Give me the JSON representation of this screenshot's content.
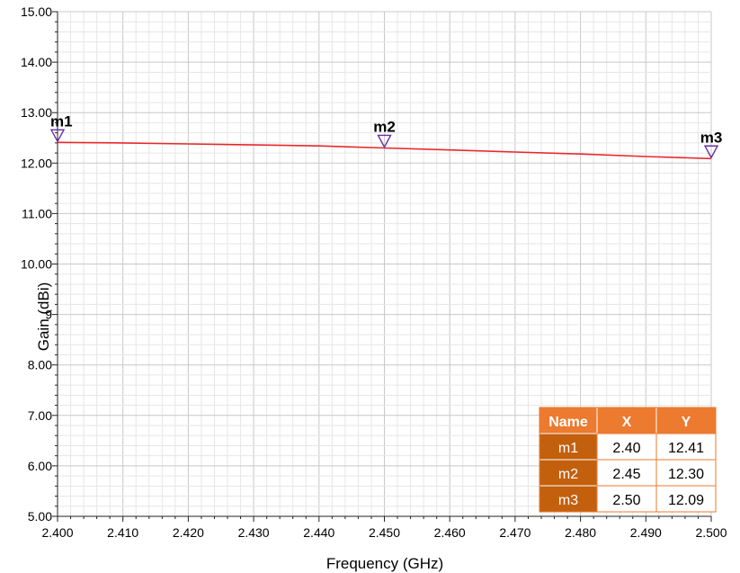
{
  "chart_data": {
    "type": "line",
    "xlabel": "Frequency (GHz)",
    "ylabel": "Gain (dBi)",
    "xlim": [
      2.4,
      2.5
    ],
    "ylim": [
      5.0,
      15.0
    ],
    "x_ticks": [
      "2.400",
      "2.410",
      "2.420",
      "2.430",
      "2.440",
      "2.450",
      "2.460",
      "2.470",
      "2.480",
      "2.490",
      "2.500"
    ],
    "y_ticks": [
      "5.00",
      "6.00",
      "7.00",
      "8.00",
      "9",
      "10.00",
      "11.00",
      "12.00",
      "13.00",
      "14.00",
      "15.00"
    ],
    "grid": true,
    "series": [
      {
        "color": "#e8282b",
        "x": [
          2.4,
          2.41,
          2.42,
          2.43,
          2.44,
          2.45,
          2.46,
          2.47,
          2.48,
          2.49,
          2.5
        ],
        "y": [
          12.41,
          12.4,
          12.38,
          12.36,
          12.34,
          12.3,
          12.26,
          12.22,
          12.18,
          12.13,
          12.09
        ]
      }
    ],
    "markers": [
      {
        "name": "m1",
        "x": 2.4,
        "y": 12.41
      },
      {
        "name": "m2",
        "x": 2.45,
        "y": 12.3
      },
      {
        "name": "m3",
        "x": 2.5,
        "y": 12.09
      }
    ],
    "marker_color": "#6a2ea3",
    "table": {
      "headers": [
        "Name",
        "X",
        "Y"
      ],
      "rows": [
        [
          "m1",
          "2.40",
          "12.41"
        ],
        [
          "m2",
          "2.45",
          "12.30"
        ],
        [
          "m3",
          "2.50",
          "12.09"
        ]
      ],
      "header_color": "#ec7a2f",
      "name_cell_color": "#c3600e",
      "border_color": "#ec7a2f"
    }
  }
}
